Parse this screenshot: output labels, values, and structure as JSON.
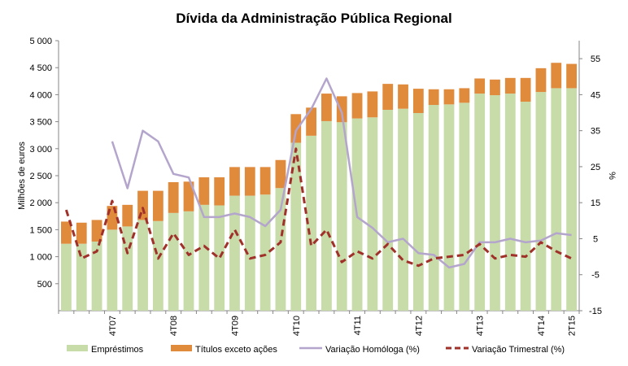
{
  "chart_data": {
    "type": "bar",
    "title": "Dívida da Administração Pública Regional",
    "ylabel": "Milhões de euros",
    "y2label": "%",
    "ylim": [
      0,
      5000
    ],
    "y_ticks": [
      500,
      1000,
      1500,
      2000,
      2500,
      3000,
      3500,
      4000,
      4500,
      5000
    ],
    "y_tick_labels": [
      "500",
      "1 000",
      "1 500",
      "2 000",
      "2 500",
      "3 000",
      "3 500",
      "4 000",
      "4 500",
      "5 000"
    ],
    "y2lim": [
      -15,
      60
    ],
    "y2_ticks": [
      -15,
      -5,
      5,
      15,
      25,
      35,
      45,
      55
    ],
    "y2_tick_labels": [
      "-15",
      "-5",
      "5",
      "15",
      "25",
      "35",
      "45",
      "55"
    ],
    "x_ticks": [
      {
        "index": 3,
        "label": "4T07"
      },
      {
        "index": 7,
        "label": "4T08"
      },
      {
        "index": 11,
        "label": "4T09"
      },
      {
        "index": 15,
        "label": "4T10"
      },
      {
        "index": 19,
        "label": "4T11"
      },
      {
        "index": 23,
        "label": "4T12"
      },
      {
        "index": 27,
        "label": "4T13"
      },
      {
        "index": 31,
        "label": "4T14"
      },
      {
        "index": 33,
        "label": "2T15"
      }
    ],
    "legend_position": "bottom",
    "grid": false,
    "series": [
      {
        "name": "Empréstimos",
        "kind": "bar",
        "stack": "debt",
        "color": "#c8dcaa",
        "values": [
          1240,
          1240,
          1280,
          1500,
          1560,
          1680,
          1660,
          1810,
          1840,
          1960,
          1950,
          2130,
          2130,
          2150,
          2270,
          3110,
          3240,
          3510,
          3490,
          3560,
          3580,
          3720,
          3740,
          3660,
          3810,
          3820,
          3850,
          4020,
          3990,
          4020,
          3870,
          4050,
          4120,
          4120
        ]
      },
      {
        "name": "Títulos exceto ações",
        "kind": "bar",
        "stack": "debt",
        "color": "#e08a3c",
        "values": [
          410,
          390,
          400,
          440,
          400,
          540,
          560,
          570,
          550,
          510,
          520,
          530,
          530,
          510,
          520,
          530,
          520,
          510,
          480,
          470,
          480,
          480,
          450,
          450,
          290,
          280,
          270,
          280,
          290,
          290,
          440,
          440,
          470,
          450
        ]
      },
      {
        "name": "Variação Homóloga (%)",
        "kind": "line",
        "axis": "right",
        "color": "#b4a5cc",
        "dash": "solid",
        "start_index": 3,
        "values": [
          32,
          19,
          35,
          32,
          23,
          22,
          11,
          11,
          12,
          11,
          8.5,
          13,
          35,
          41,
          49.5,
          40,
          11,
          8,
          4,
          5,
          1,
          0.5,
          -3,
          -2,
          4,
          4,
          5,
          4,
          4.5,
          6.5,
          6
        ]
      },
      {
        "name": "Variação Trimestral (%)",
        "kind": "line",
        "axis": "right",
        "color": "#a0302a",
        "dash": "dashed",
        "start_index": 0,
        "values": [
          13,
          -0.5,
          1.5,
          15.5,
          1,
          13.5,
          -0.5,
          6.5,
          0.5,
          3,
          -0.5,
          7.5,
          -0.5,
          0.5,
          4,
          30,
          3,
          7.5,
          -1.5,
          1.5,
          -0.5,
          3.5,
          -1,
          -2.5,
          -0.5,
          0,
          0.5,
          3.5,
          -0.5,
          0.5,
          0,
          4,
          1.5,
          -0.5
        ]
      }
    ]
  }
}
